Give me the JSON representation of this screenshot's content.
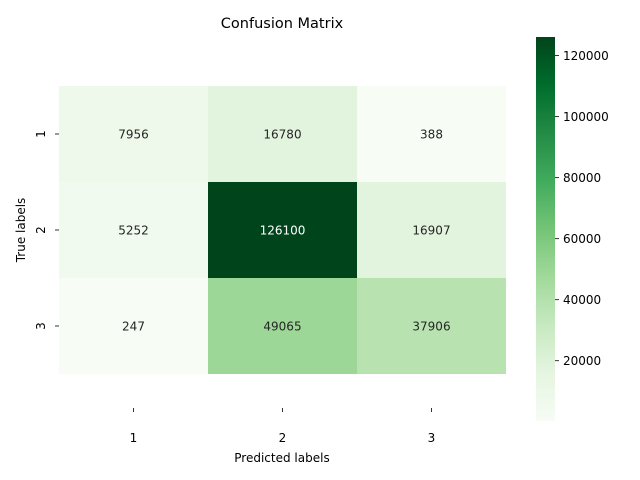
{
  "chart_data": {
    "type": "heatmap",
    "title": "Confusion Matrix",
    "xlabel": "Predicted labels",
    "ylabel": "True labels",
    "x_categories": [
      "1",
      "2",
      "3"
    ],
    "y_categories": [
      "1",
      "2",
      "3"
    ],
    "values": [
      [
        7956,
        16780,
        388
      ],
      [
        5252,
        126100,
        16907
      ],
      [
        247,
        49065,
        37906
      ]
    ],
    "colormap": "Greens",
    "color_range": [
      247,
      126100
    ],
    "colorbar_ticks": [
      20000,
      40000,
      60000,
      80000,
      100000,
      120000
    ],
    "colorbar_tick_labels": [
      "20000",
      "40000",
      "60000",
      "80000",
      "100000",
      "120000"
    ]
  }
}
